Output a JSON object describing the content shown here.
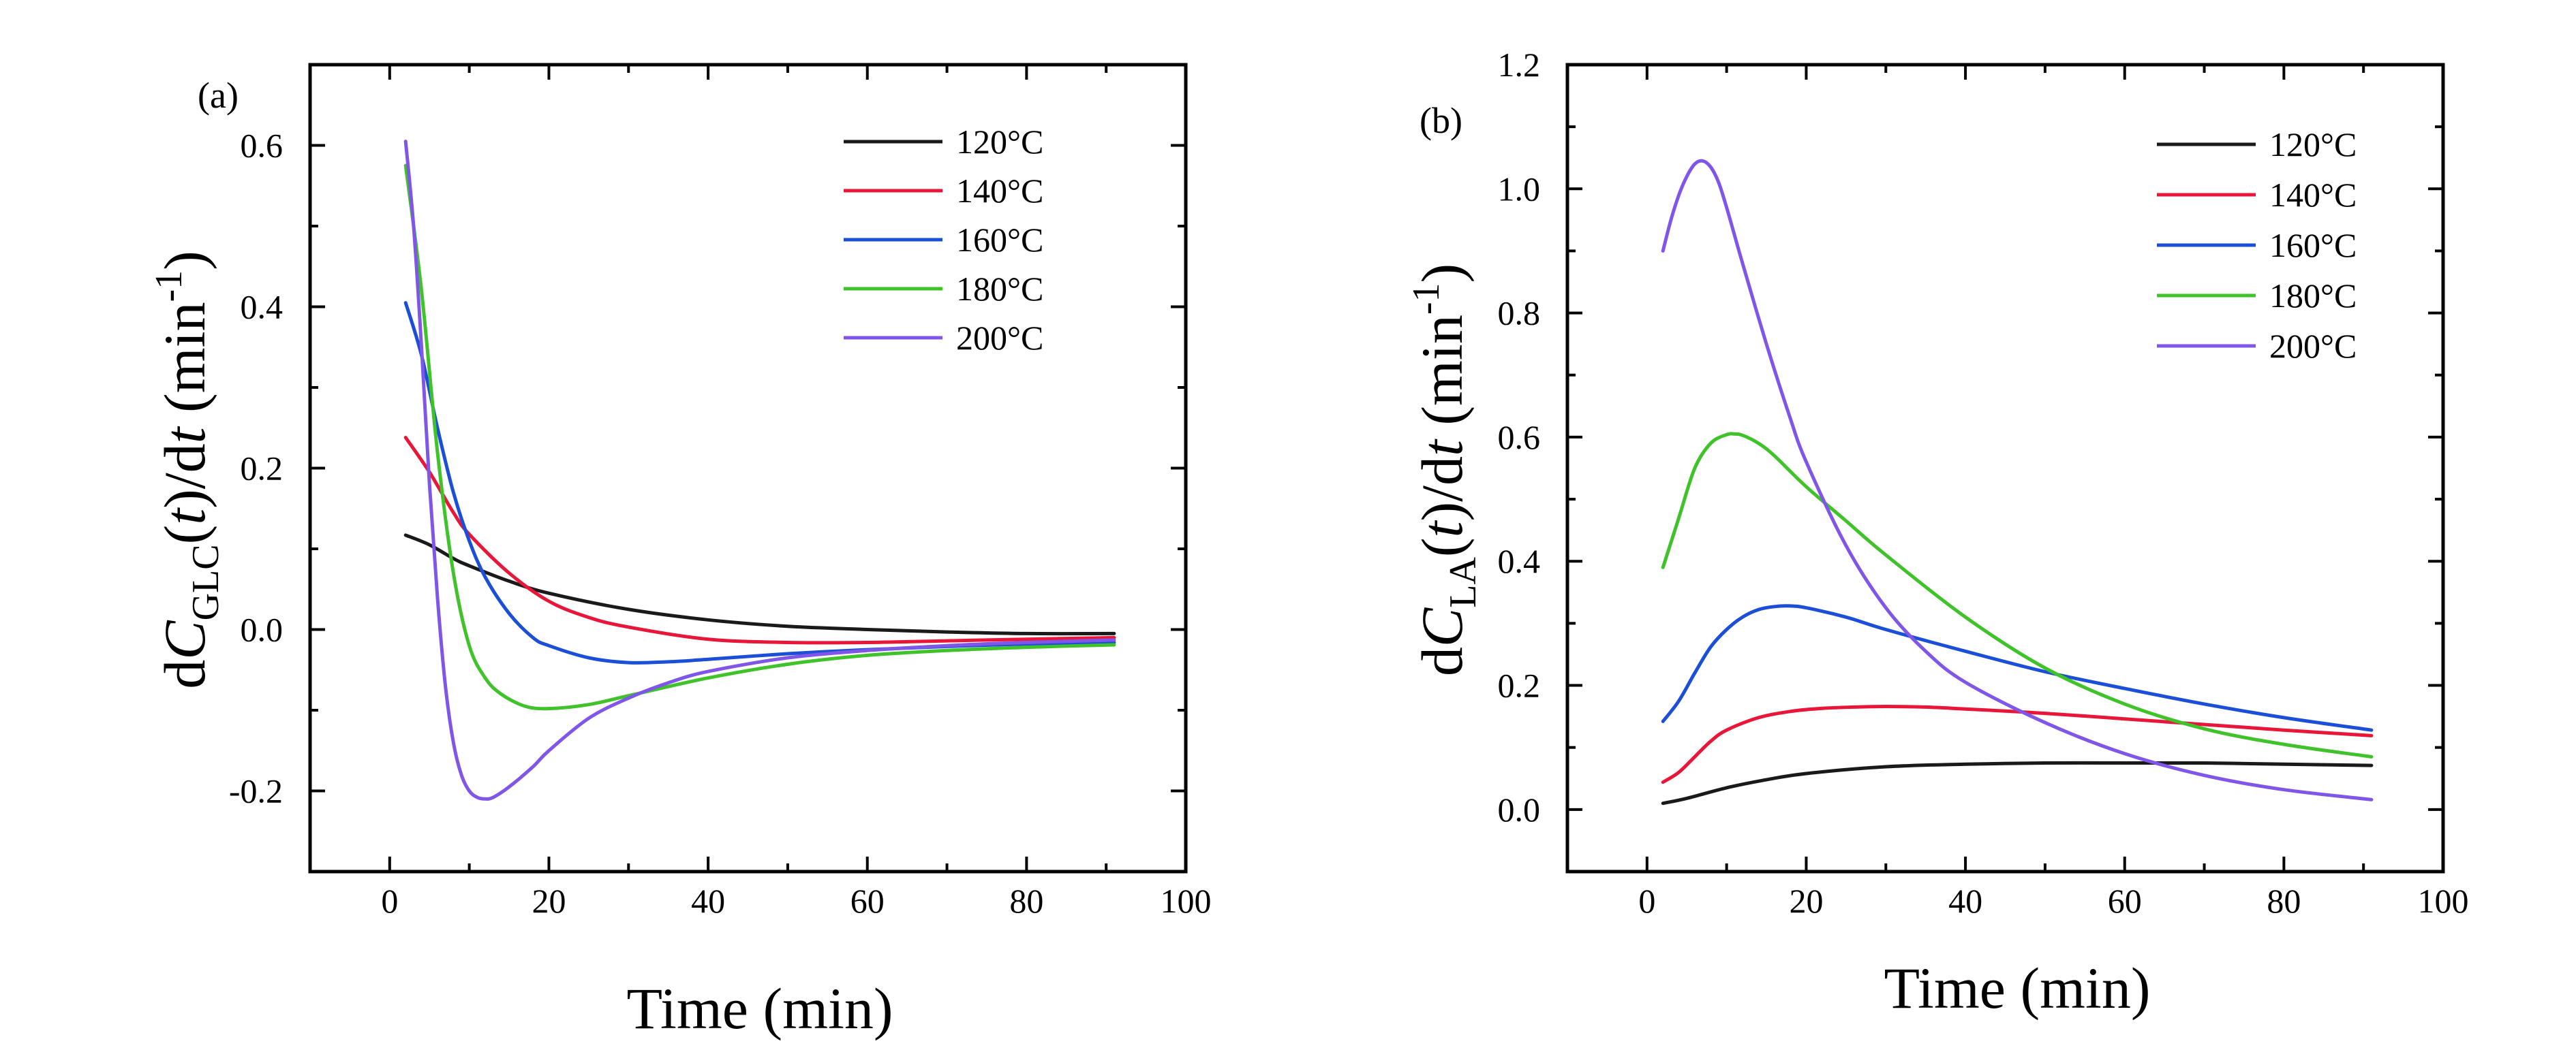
{
  "chart_data": [
    {
      "type": "line",
      "panel_label": "(a)",
      "xlabel": "Time (min)",
      "ylabel_parts": [
        "d",
        "C",
        "GLC",
        "(",
        "t",
        ")/d",
        "t",
        " (min",
        "-1",
        ")"
      ],
      "xlim": [
        -10,
        100
      ],
      "ylim": [
        -0.3,
        0.7
      ],
      "x_ticks": [
        0,
        20,
        40,
        60,
        80,
        100
      ],
      "y_ticks": [
        -0.2,
        0.0,
        0.2,
        0.4,
        0.6
      ],
      "y_tick_labels": [
        "-0.2",
        "0.0",
        "0.2",
        "0.4",
        "0.6"
      ],
      "legend_position": "top-right",
      "grid": false,
      "series": [
        {
          "name": "120°C",
          "color": "#1a1a1a",
          "x": [
            2,
            5,
            8,
            10,
            15,
            20,
            30,
            40,
            50,
            60,
            70,
            80,
            91
          ],
          "y": [
            0.117,
            0.105,
            0.088,
            0.079,
            0.06,
            0.045,
            0.025,
            0.012,
            0.004,
            0.0,
            -0.003,
            -0.005,
            -0.005
          ]
        },
        {
          "name": "140°C",
          "color": "#e8173a",
          "x": [
            2,
            5,
            8,
            10,
            15,
            20,
            25,
            30,
            40,
            50,
            60,
            70,
            80,
            91
          ],
          "y": [
            0.238,
            0.195,
            0.145,
            0.118,
            0.07,
            0.035,
            0.015,
            0.003,
            -0.012,
            -0.016,
            -0.016,
            -0.014,
            -0.012,
            -0.01
          ]
        },
        {
          "name": "160°C",
          "color": "#1b4fd8",
          "x": [
            2,
            4,
            6,
            8,
            10,
            12,
            15,
            18,
            20,
            25,
            30,
            35,
            40,
            50,
            60,
            70,
            80,
            91
          ],
          "y": [
            0.405,
            0.34,
            0.25,
            0.17,
            0.11,
            0.065,
            0.02,
            -0.01,
            -0.02,
            -0.035,
            -0.041,
            -0.04,
            -0.037,
            -0.03,
            -0.025,
            -0.021,
            -0.018,
            -0.016
          ]
        },
        {
          "name": "180°C",
          "color": "#3fc22a",
          "x": [
            2,
            4,
            6,
            8,
            10,
            12,
            14,
            17,
            20,
            25,
            30,
            40,
            50,
            60,
            70,
            80,
            91
          ],
          "y": [
            0.575,
            0.42,
            0.22,
            0.07,
            -0.02,
            -0.06,
            -0.08,
            -0.095,
            -0.098,
            -0.093,
            -0.082,
            -0.06,
            -0.043,
            -0.032,
            -0.026,
            -0.022,
            -0.019
          ]
        },
        {
          "name": "200°C",
          "color": "#7f56e8",
          "x": [
            2,
            3,
            4,
            5,
            6,
            7,
            8,
            9,
            10,
            11,
            12,
            13,
            15,
            18,
            20,
            25,
            30,
            35,
            40,
            50,
            60,
            70,
            80,
            91
          ],
          "y": [
            0.605,
            0.5,
            0.35,
            0.18,
            0.04,
            -0.07,
            -0.14,
            -0.18,
            -0.2,
            -0.208,
            -0.21,
            -0.208,
            -0.195,
            -0.17,
            -0.15,
            -0.11,
            -0.085,
            -0.066,
            -0.052,
            -0.035,
            -0.026,
            -0.02,
            -0.016,
            -0.013
          ]
        }
      ]
    },
    {
      "type": "line",
      "panel_label": "(b)",
      "xlabel": "Time (min)",
      "ylabel_parts": [
        "d",
        "C",
        "LA",
        "(",
        "t",
        ")/d",
        "t",
        " (min",
        "-1",
        ")"
      ],
      "xlim": [
        -10,
        100
      ],
      "ylim": [
        -0.1,
        1.2
      ],
      "x_ticks": [
        0,
        20,
        40,
        60,
        80,
        100
      ],
      "y_ticks": [
        0.0,
        0.2,
        0.4,
        0.6,
        0.8,
        1.0,
        1.2
      ],
      "y_tick_labels": [
        "0.0",
        "0.2",
        "0.4",
        "0.6",
        "0.8",
        "1.0",
        "1.2"
      ],
      "legend_position": "top-right",
      "grid": false,
      "series": [
        {
          "name": "120°C",
          "color": "#1a1a1a",
          "x": [
            2,
            5,
            10,
            15,
            20,
            30,
            40,
            50,
            60,
            70,
            80,
            91
          ],
          "y": [
            0.01,
            0.018,
            0.035,
            0.048,
            0.058,
            0.069,
            0.073,
            0.075,
            0.075,
            0.075,
            0.073,
            0.071
          ]
        },
        {
          "name": "140°C",
          "color": "#e8173a",
          "x": [
            2,
            4,
            6,
            8,
            10,
            14,
            18,
            22,
            26,
            30,
            35,
            40,
            50,
            60,
            70,
            80,
            91
          ],
          "y": [
            0.044,
            0.06,
            0.085,
            0.11,
            0.128,
            0.148,
            0.158,
            0.163,
            0.165,
            0.166,
            0.165,
            0.162,
            0.155,
            0.146,
            0.137,
            0.128,
            0.119
          ]
        },
        {
          "name": "160°C",
          "color": "#1b4fd8",
          "x": [
            2,
            4,
            6,
            8,
            10,
            12,
            14,
            16,
            18,
            20,
            25,
            30,
            40,
            50,
            60,
            70,
            80,
            91
          ],
          "y": [
            0.142,
            0.175,
            0.22,
            0.262,
            0.29,
            0.31,
            0.322,
            0.327,
            0.328,
            0.325,
            0.31,
            0.29,
            0.255,
            0.222,
            0.195,
            0.17,
            0.148,
            0.128
          ]
        },
        {
          "name": "180°C",
          "color": "#3fc22a",
          "x": [
            2,
            4,
            6,
            8,
            10,
            11,
            12,
            14,
            16,
            20,
            25,
            30,
            40,
            50,
            60,
            70,
            80,
            91
          ],
          "y": [
            0.39,
            0.47,
            0.55,
            0.59,
            0.604,
            0.605,
            0.603,
            0.59,
            0.57,
            0.52,
            0.465,
            0.41,
            0.31,
            0.228,
            0.17,
            0.13,
            0.105,
            0.085
          ]
        },
        {
          "name": "200°C",
          "color": "#7f56e8",
          "x": [
            2,
            3,
            4,
            5,
            6,
            7,
            8,
            9,
            10,
            12,
            15,
            18,
            20,
            25,
            30,
            35,
            40,
            50,
            60,
            70,
            80,
            91
          ],
          "y": [
            0.9,
            0.95,
            0.99,
            1.02,
            1.04,
            1.045,
            1.035,
            1.01,
            0.97,
            0.88,
            0.75,
            0.63,
            0.56,
            0.425,
            0.325,
            0.255,
            0.205,
            0.14,
            0.09,
            0.055,
            0.032,
            0.016
          ]
        }
      ]
    }
  ]
}
